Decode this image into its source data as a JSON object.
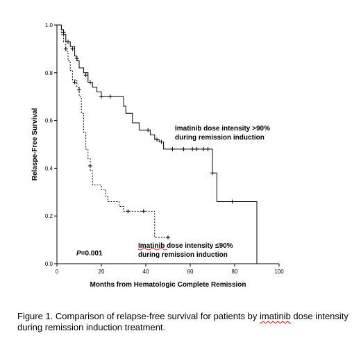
{
  "chart_data": {
    "type": "line",
    "title": "",
    "xlabel": "Months from Hematologic Complete Remission",
    "ylabel": "Relaspe-Free Survival",
    "xlim": [
      0,
      100
    ],
    "ylim": [
      0,
      1.0
    ],
    "xticks": [
      "0",
      "20",
      "40",
      "60",
      "80",
      "100"
    ],
    "yticks": [
      "0.0",
      "0.2",
      "0.4",
      "0.6",
      "0.8",
      "1.0"
    ],
    "grid": false,
    "legend": "none",
    "series": [
      {
        "name": "Imatinib dose intensity >90% during remission induction",
        "line_style": "solid",
        "color": "#000000",
        "steps": [
          [
            0,
            1.0
          ],
          [
            2,
            0.98
          ],
          [
            3,
            0.96
          ],
          [
            4,
            0.93
          ],
          [
            6,
            0.91
          ],
          [
            8,
            0.87
          ],
          [
            9,
            0.85
          ],
          [
            10,
            0.82
          ],
          [
            12,
            0.8
          ],
          [
            14,
            0.76
          ],
          [
            16,
            0.74
          ],
          [
            18,
            0.72
          ],
          [
            20,
            0.7
          ],
          [
            30,
            0.66
          ],
          [
            31,
            0.63
          ],
          [
            34,
            0.59
          ],
          [
            37,
            0.56
          ],
          [
            42,
            0.54
          ],
          [
            44,
            0.52
          ],
          [
            46,
            0.51
          ],
          [
            48,
            0.48
          ],
          [
            70,
            0.38
          ],
          [
            72,
            0.26
          ],
          [
            90,
            0.0
          ]
        ],
        "censored": [
          [
            3,
            0.97
          ],
          [
            5,
            0.93
          ],
          [
            7,
            0.9
          ],
          [
            9,
            0.86
          ],
          [
            13,
            0.79
          ],
          [
            15,
            0.76
          ],
          [
            20,
            0.7
          ],
          [
            24,
            0.7
          ],
          [
            41,
            0.56
          ],
          [
            45,
            0.52
          ],
          [
            47,
            0.51
          ],
          [
            52,
            0.48
          ],
          [
            57,
            0.48
          ],
          [
            61,
            0.48
          ],
          [
            63,
            0.48
          ],
          [
            66,
            0.48
          ],
          [
            68,
            0.48
          ],
          [
            70,
            0.38
          ],
          [
            79,
            0.26
          ]
        ],
        "label_lines": [
          "Imatinib dose intensity >90%",
          "during remission induction"
        ]
      },
      {
        "name": "Imatinib dose intensity ≤90% during remission induction",
        "line_style": "dashed",
        "color": "#000000",
        "steps": [
          [
            0,
            1.0
          ],
          [
            2,
            0.96
          ],
          [
            3,
            0.93
          ],
          [
            4,
            0.89
          ],
          [
            5,
            0.85
          ],
          [
            6,
            0.81
          ],
          [
            7,
            0.77
          ],
          [
            9,
            0.74
          ],
          [
            10,
            0.7
          ],
          [
            11,
            0.63
          ],
          [
            12,
            0.55
          ],
          [
            13,
            0.48
          ],
          [
            14,
            0.44
          ],
          [
            15,
            0.39
          ],
          [
            16,
            0.33
          ],
          [
            17,
            0.33
          ],
          [
            20,
            0.31
          ],
          [
            22,
            0.28
          ],
          [
            23,
            0.26
          ],
          [
            28,
            0.24
          ],
          [
            30,
            0.22
          ],
          [
            44,
            0.11
          ],
          [
            50,
            0.11
          ]
        ],
        "censored": [
          [
            4,
            0.9
          ],
          [
            8,
            0.76
          ],
          [
            10,
            0.73
          ],
          [
            15,
            0.41
          ],
          [
            32,
            0.22
          ],
          [
            39,
            0.22
          ],
          [
            50,
            0.11
          ]
        ],
        "label_lines": [
          "Imatinib dose intensity ≤90%",
          "during remission induction"
        ]
      }
    ],
    "annotations": {
      "p_prefix": "P",
      "p_value": "=0.001"
    }
  },
  "caption": {
    "part1": "Figure 1. Comparison of relapse-free survival  for patients by ",
    "underlined": "imatinib",
    "part2": " dose intensity during remission induction treatment."
  }
}
